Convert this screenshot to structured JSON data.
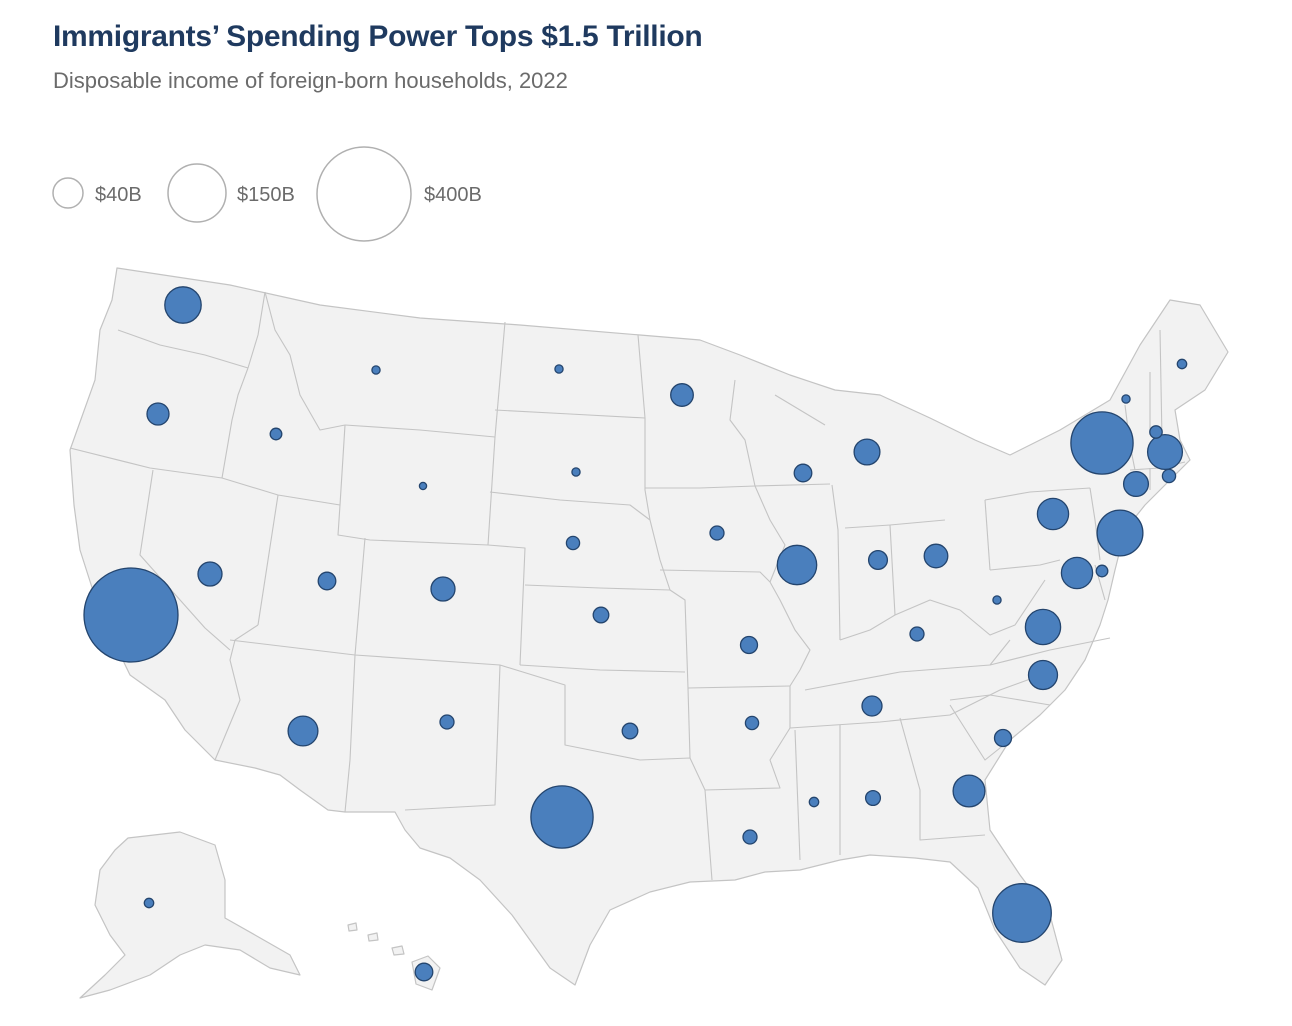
{
  "header": {
    "title": "Immigrants’ Spending Power Tops $1.5 Trillion",
    "subtitle": "Disposable income of foreign-born households, 2022"
  },
  "legend": {
    "items": [
      {
        "label": "$40B",
        "value": 40
      },
      {
        "label": "$150B",
        "value": 150
      },
      {
        "label": "$400B",
        "value": 400
      }
    ]
  },
  "colors": {
    "bubble_fill": "#4a7fbd",
    "bubble_stroke": "#24456e",
    "land": "#f2f2f2",
    "border": "#c4c4c4",
    "legend_stroke": "#b0b0b0"
  },
  "map": {
    "type": "proportional-symbol",
    "units": "billion USD (approximate, estimated from bubble area)",
    "states": [
      {
        "code": "CA",
        "value": 400
      },
      {
        "code": "TX",
        "value": 175
      },
      {
        "code": "NY",
        "value": 175
      },
      {
        "code": "FL",
        "value": 155
      },
      {
        "code": "NJ",
        "value": 95
      },
      {
        "code": "IL",
        "value": 70
      },
      {
        "code": "MA",
        "value": 55
      },
      {
        "code": "WA",
        "value": 60
      },
      {
        "code": "GA",
        "value": 46
      },
      {
        "code": "VA",
        "value": 56
      },
      {
        "code": "MD",
        "value": 44
      },
      {
        "code": "PA",
        "value": 44
      },
      {
        "code": "NC",
        "value": 38
      },
      {
        "code": "AZ",
        "value": 40
      },
      {
        "code": "NV",
        "value": 26
      },
      {
        "code": "CO",
        "value": 26
      },
      {
        "code": "MI",
        "value": 30
      },
      {
        "code": "CT",
        "value": 28
      },
      {
        "code": "MN",
        "value": 23
      },
      {
        "code": "OH",
        "value": 25
      },
      {
        "code": "OR",
        "value": 22
      },
      {
        "code": "IN",
        "value": 16
      },
      {
        "code": "TN",
        "value": 18
      },
      {
        "code": "UT",
        "value": 14
      },
      {
        "code": "WI",
        "value": 14
      },
      {
        "code": "MO",
        "value": 13
      },
      {
        "code": "SC",
        "value": 13
      },
      {
        "code": "KS",
        "value": 11
      },
      {
        "code": "OK",
        "value": 11
      },
      {
        "code": "HI",
        "value": 14
      },
      {
        "code": "KY",
        "value": 9
      },
      {
        "code": "AL",
        "value": 10
      },
      {
        "code": "LA",
        "value": 9
      },
      {
        "code": "IA",
        "value": 9
      },
      {
        "code": "AR",
        "value": 8
      },
      {
        "code": "NM",
        "value": 9
      },
      {
        "code": "NE",
        "value": 8
      },
      {
        "code": "NH",
        "value": 7
      },
      {
        "code": "RI",
        "value": 8
      },
      {
        "code": "DE",
        "value": 6
      },
      {
        "code": "ID",
        "value": 6
      },
      {
        "code": "ME",
        "value": 4
      },
      {
        "code": "MS",
        "value": 4
      },
      {
        "code": "AK",
        "value": 4
      },
      {
        "code": "WV",
        "value": 3
      },
      {
        "code": "SD",
        "value": 3
      },
      {
        "code": "ND",
        "value": 3
      },
      {
        "code": "MT",
        "value": 3
      },
      {
        "code": "VT",
        "value": 3
      },
      {
        "code": "WY",
        "value": 2
      }
    ]
  }
}
